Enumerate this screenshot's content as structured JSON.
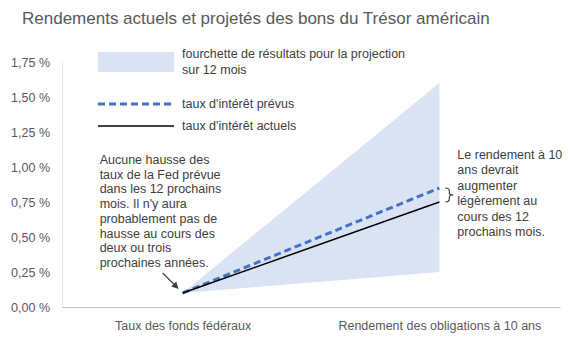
{
  "chart_data": {
    "type": "line",
    "title": "Rendements actuels et projetés des bons du Trésor américain",
    "categories": [
      "Taux des fonds fédéraux",
      "Rendement des obligations à 10 ans"
    ],
    "series": [
      {
        "name": "fourchette de résultats pour la projection sur 12 mois",
        "type": "area",
        "color": "#dae3f3",
        "values": [
          0.1,
          1.6
        ],
        "low": [
          0.1,
          0.25
        ]
      },
      {
        "name": "taux d'intérêt prévus",
        "type": "line",
        "color": "#4472c4",
        "line_style": "dashed",
        "values": [
          0.1,
          0.85
        ]
      },
      {
        "name": "taux d'intérêt actuels",
        "type": "line",
        "color": "#000000",
        "line_style": "solid",
        "values": [
          0.1,
          0.75
        ]
      }
    ],
    "ylim": [
      0,
      1.75
    ],
    "yticks": [
      {
        "value": 0,
        "label": "0,00 %"
      },
      {
        "value": 0.25,
        "label": "0,25 %"
      },
      {
        "value": 0.5,
        "label": "0,50 %"
      },
      {
        "value": 0.75,
        "label": "0,75 %"
      },
      {
        "value": 1,
        "label": "1,00 %"
      },
      {
        "value": 1.25,
        "label": "1,25 %"
      },
      {
        "value": 1.5,
        "label": "1,50 %"
      },
      {
        "value": 1.75,
        "label": "1,75 %"
      }
    ],
    "grid": false,
    "legend": "top-left",
    "annotations": [
      {
        "lines": [
          "Aucune hausse des",
          "taux de la Fed prévue",
          "dans les 12 prochains",
          "mois. Il n'y aura",
          "probablement pas de",
          "hausse au cours des",
          "deux ou trois",
          "prochaines années."
        ]
      },
      {
        "lines": [
          "Le rendement à 10",
          "ans devrait",
          "augmenter",
          "légèrement au",
          "cours des 12",
          "prochains mois."
        ]
      }
    ]
  }
}
